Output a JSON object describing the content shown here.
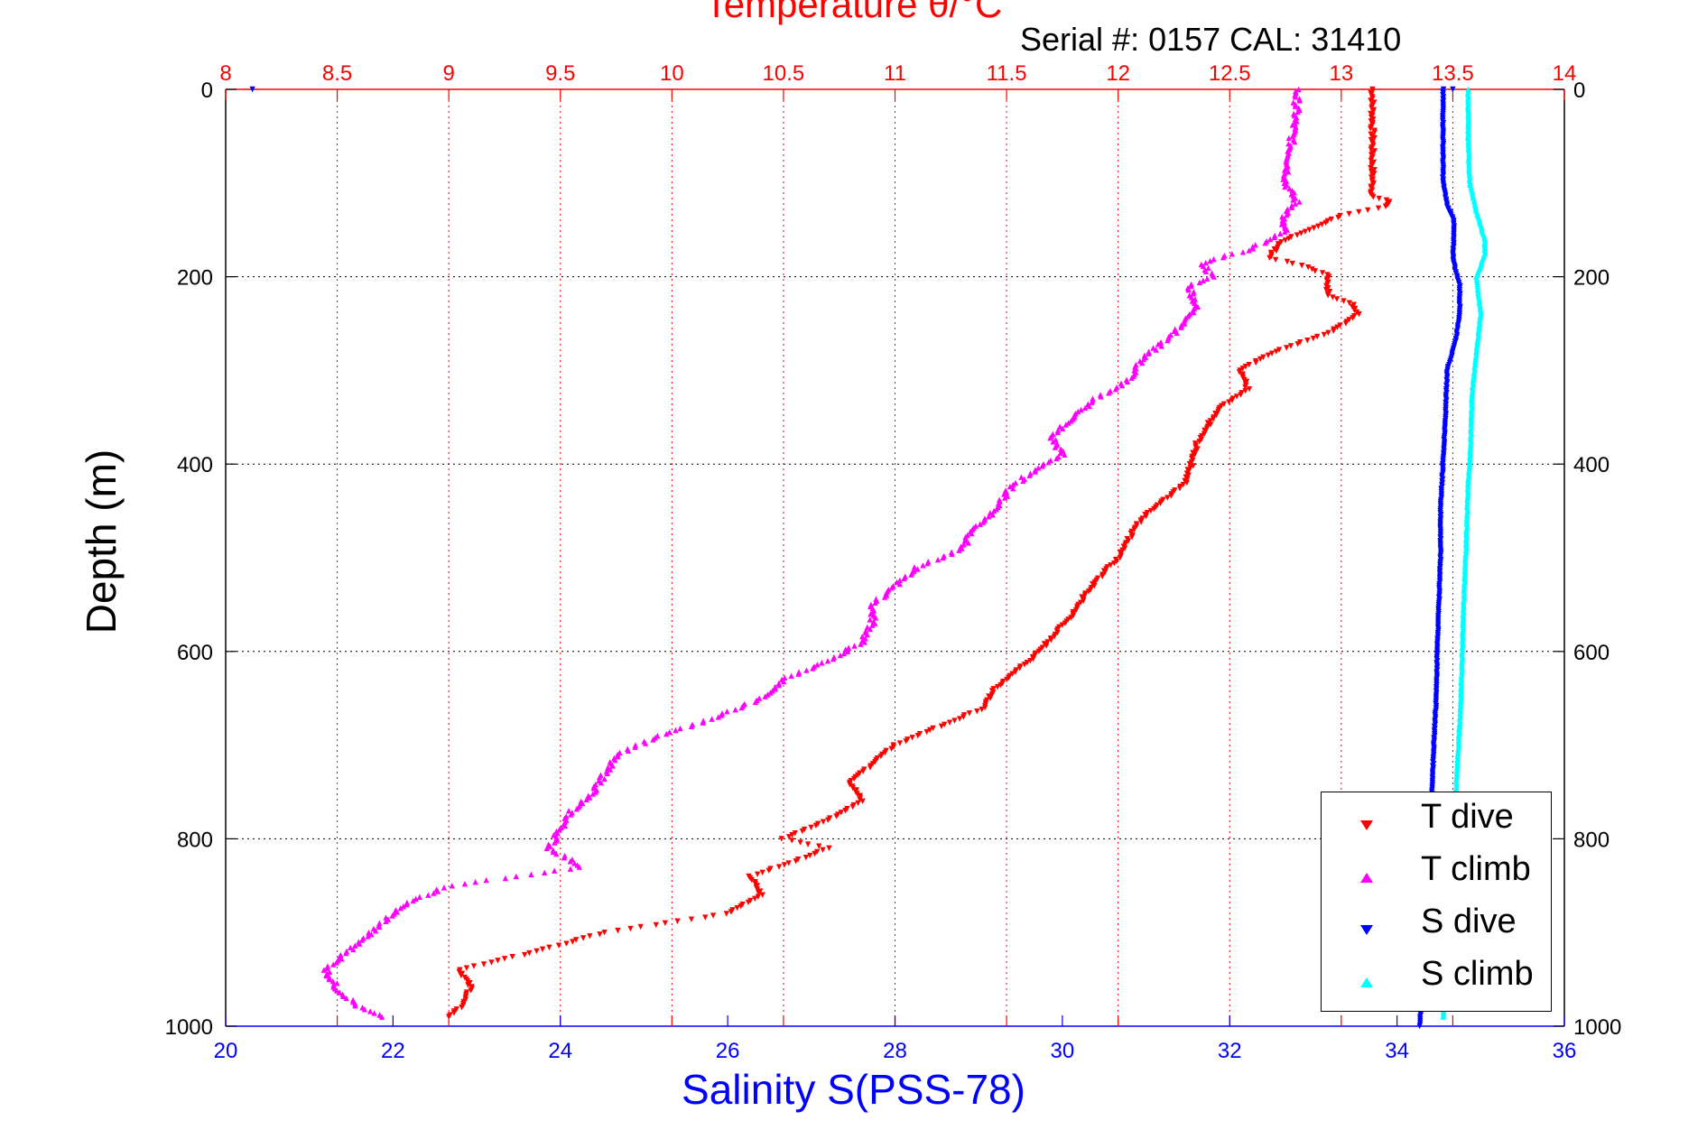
{
  "top_title": "Temperature θ/°C",
  "serial_text": "Serial #: 0157  CAL: 31410",
  "bottom_title": "Salinity S(PSS-78)",
  "ylabel": "Depth (m)",
  "colors": {
    "t_dive": "#ff0000",
    "t_climb": "#ff00ff",
    "s_dive": "#0000ff",
    "s_climb": "#00ffff",
    "top_axis": "#ff0000",
    "bottom_axis": "#0000ff",
    "grid_t": "#ff0000",
    "grid_depth": "#000000"
  },
  "legend": {
    "items": [
      {
        "label": "T dive",
        "color": "#ff0000",
        "marker": "triangle-down"
      },
      {
        "label": "T climb",
        "color": "#ff00ff",
        "marker": "triangle-up"
      },
      {
        "label": "S dive",
        "color": "#0000ff",
        "marker": "triangle-down"
      },
      {
        "label": "S climb",
        "color": "#00ffff",
        "marker": "triangle-up"
      }
    ]
  },
  "chart_data": {
    "type": "scatter",
    "title": "Temperature θ/°C",
    "xlabel": "Salinity S(PSS-78)",
    "ylabel": "Depth (m)",
    "temperature_axis": {
      "label": "Temperature θ/°C",
      "range": [
        8,
        14
      ],
      "ticks": [
        "8",
        "8.5",
        "9",
        "9.5",
        "10",
        "10.5",
        "11",
        "11.5",
        "12",
        "12.5",
        "13",
        "13.5",
        "14"
      ],
      "gridlines": true
    },
    "salinity_axis": {
      "label": "Salinity S(PSS-78)",
      "range": [
        20,
        36
      ],
      "ticks": [
        "20",
        "22",
        "24",
        "26",
        "28",
        "30",
        "32",
        "34",
        "36"
      ],
      "gridlines": false
    },
    "depth_axis": {
      "label": "Depth (m)",
      "range": [
        0,
        1000
      ],
      "reversed": true,
      "ticks": [
        "0",
        "200",
        "400",
        "600",
        "800",
        "1000"
      ],
      "gridlines": true
    },
    "legend_position": "bottom-right",
    "series": [
      {
        "name": "T dive",
        "axis": "temperature",
        "marker": "triangle-down",
        "depth": [
          0,
          10,
          50,
          100,
          115,
          120,
          125,
          135,
          150,
          165,
          180,
          190,
          200,
          210,
          220,
          230,
          240,
          260,
          280,
          300,
          320,
          340,
          360,
          380,
          400,
          420,
          440,
          460,
          480,
          500,
          520,
          540,
          560,
          580,
          600,
          620,
          640,
          660,
          680,
          700,
          720,
          740,
          760,
          780,
          800,
          810,
          820,
          840,
          860,
          880,
          900,
          920,
          940,
          960,
          980,
          990
        ],
        "values": [
          13.14,
          13.14,
          13.14,
          13.14,
          13.14,
          13.22,
          13.2,
          13.0,
          12.85,
          12.72,
          12.68,
          12.85,
          12.95,
          12.93,
          12.95,
          13.05,
          13.08,
          12.95,
          12.7,
          12.55,
          12.58,
          12.45,
          12.4,
          12.35,
          12.33,
          12.3,
          12.2,
          12.1,
          12.05,
          12.0,
          11.92,
          11.85,
          11.8,
          11.72,
          11.65,
          11.55,
          11.45,
          11.4,
          11.2,
          11.0,
          10.9,
          10.8,
          10.85,
          10.7,
          10.5,
          10.7,
          10.6,
          10.35,
          10.4,
          10.25,
          9.7,
          9.4,
          9.05,
          9.1,
          9.05,
          9.0
        ]
      },
      {
        "name": "T climb",
        "axis": "temperature",
        "marker": "triangle-up",
        "depth": [
          0,
          20,
          50,
          100,
          120,
          140,
          150,
          170,
          185,
          200,
          210,
          230,
          250,
          270,
          290,
          310,
          330,
          350,
          370,
          390,
          410,
          430,
          450,
          470,
          490,
          510,
          530,
          550,
          570,
          590,
          610,
          630,
          650,
          670,
          690,
          710,
          730,
          750,
          770,
          790,
          810,
          830,
          850,
          870,
          890,
          910,
          930,
          940,
          960,
          980,
          990
        ],
        "values": [
          12.8,
          12.8,
          12.78,
          12.75,
          12.8,
          12.73,
          12.75,
          12.6,
          12.38,
          12.42,
          12.32,
          12.35,
          12.3,
          12.2,
          12.1,
          12.05,
          11.9,
          11.8,
          11.7,
          11.75,
          11.6,
          11.5,
          11.45,
          11.35,
          11.3,
          11.1,
          11.0,
          10.9,
          10.9,
          10.85,
          10.7,
          10.5,
          10.4,
          10.2,
          9.95,
          9.75,
          9.7,
          9.65,
          9.55,
          9.5,
          9.45,
          9.6,
          9.0,
          8.8,
          8.7,
          8.6,
          8.5,
          8.45,
          8.5,
          8.6,
          8.7
        ]
      },
      {
        "name": "S dive",
        "axis": "salinity",
        "marker": "triangle-down",
        "depth": [
          0,
          50,
          100,
          125,
          140,
          180,
          195,
          210,
          240,
          270,
          300,
          350,
          400,
          450,
          500,
          550,
          600,
          650,
          700,
          750,
          800,
          850,
          900,
          950,
          990,
          1000
        ],
        "values": [
          34.55,
          34.55,
          34.55,
          34.6,
          34.68,
          34.67,
          34.7,
          34.75,
          34.75,
          34.7,
          34.6,
          34.58,
          34.55,
          34.52,
          34.52,
          34.5,
          34.48,
          34.47,
          34.44,
          34.42,
          34.4,
          34.37,
          34.34,
          34.3,
          34.28,
          34.27
        ]
      },
      {
        "name": "S climb",
        "axis": "salinity",
        "marker": "triangle-up",
        "depth": [
          0,
          50,
          100,
          130,
          160,
          175,
          200,
          240,
          280,
          320,
          380,
          420,
          480,
          540,
          600,
          660,
          720,
          760,
          800,
          850,
          900,
          950,
          990
        ],
        "values": [
          34.85,
          34.85,
          34.87,
          34.95,
          35.05,
          35.05,
          34.95,
          35.0,
          34.95,
          34.9,
          34.88,
          34.85,
          34.83,
          34.8,
          34.78,
          34.76,
          34.72,
          34.7,
          34.67,
          34.65,
          34.62,
          34.6,
          34.55
        ]
      }
    ],
    "extra_points": [
      {
        "axis": "temperature",
        "depth": 0,
        "value": 8.12,
        "series": "S dive"
      },
      {
        "axis": "temperature",
        "depth": 0,
        "value": 13.5,
        "series": "S dive"
      }
    ]
  }
}
